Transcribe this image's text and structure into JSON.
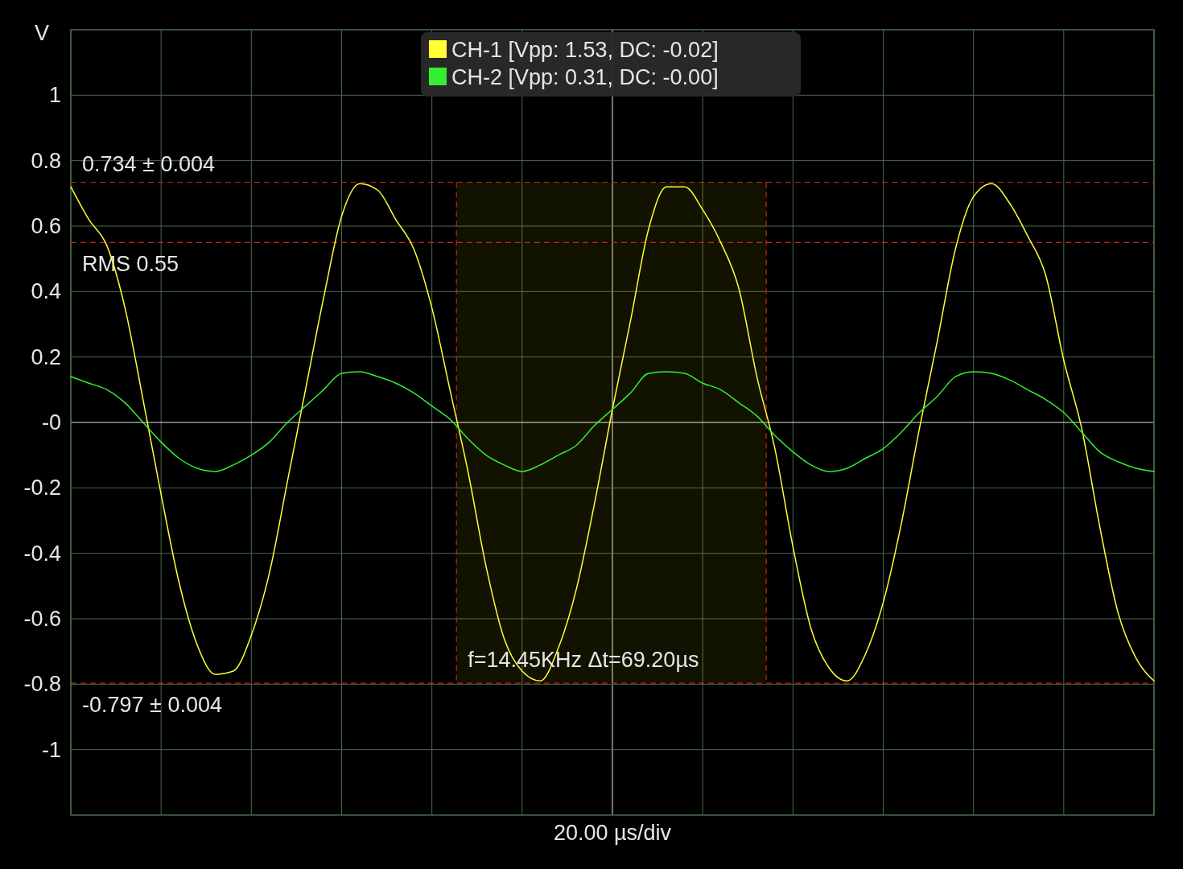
{
  "chart_data": {
    "type": "line",
    "ylabel": "V",
    "xlabel": "20.00 µs/div",
    "categories": [
      null,
      null,
      null,
      null,
      null,
      null,
      null,
      null,
      null,
      null,
      null,
      null,
      null,
      null,
      null,
      null,
      null,
      null,
      null,
      null,
      null,
      null,
      null,
      null,
      null,
      null,
      null,
      null,
      null,
      null,
      null,
      null,
      null,
      null,
      null,
      null,
      null,
      null,
      null,
      null,
      null,
      null,
      null,
      null,
      null,
      null,
      null,
      null,
      null,
      null,
      null,
      null,
      null,
      null,
      null,
      null,
      null,
      null,
      null,
      null,
      null
    ],
    "ylim": [
      -1.2,
      1.2
    ],
    "yticks": [
      1,
      0.8,
      0.6,
      0.4,
      0.2,
      {
        "value": 0,
        "label": "-0"
      },
      -0.2,
      -0.4,
      -0.6,
      -0.8,
      -1
    ],
    "grid": true,
    "legend": "top",
    "marker": "none",
    "line_style": "solid",
    "series": [
      {
        "name": "CH-1 [Vpp: 1.53, DC: -0.02]",
        "color": "#ffff33",
        "values": [
          0.72,
          0.62,
          0.54,
          0.35,
          0.07,
          -0.22,
          -0.49,
          -0.68,
          -0.77,
          -0.76,
          -0.65,
          -0.46,
          -0.18,
          0.1,
          0.38,
          0.63,
          0.73,
          0.71,
          0.62,
          0.53,
          0.35,
          0.1,
          -0.15,
          -0.44,
          -0.66,
          -0.76,
          -0.79,
          -0.69,
          -0.51,
          -0.25,
          0.04,
          0.31,
          0.59,
          0.72,
          0.72,
          0.65,
          0.55,
          0.41,
          0.14,
          -0.08,
          -0.38,
          -0.63,
          -0.75,
          -0.79,
          -0.71,
          -0.55,
          -0.31,
          -0.02,
          0.25,
          0.53,
          0.69,
          0.73,
          0.67,
          0.57,
          0.45,
          0.19,
          -0.02,
          -0.32,
          -0.58,
          -0.72,
          -0.79
        ]
      },
      {
        "name": "CH-2 [Vpp: 0.31, DC: -0.00]",
        "color": "#33ee33",
        "values": [
          0.14,
          0.12,
          0.1,
          0.06,
          0,
          -0.06,
          -0.11,
          -0.14,
          -0.15,
          -0.13,
          -0.1,
          -0.06,
          0,
          0.05,
          0.1,
          0.15,
          0.155,
          0.14,
          0.12,
          0.09,
          0.05,
          0.01,
          -0.05,
          -0.1,
          -0.13,
          -0.15,
          -0.13,
          -0.1,
          -0.07,
          -0.01,
          0.04,
          0.09,
          0.15,
          0.155,
          0.15,
          0.12,
          0.1,
          0.06,
          0.02,
          -0.04,
          -0.09,
          -0.13,
          -0.15,
          -0.14,
          -0.11,
          -0.08,
          -0.03,
          0.03,
          0.08,
          0.14,
          0.155,
          0.15,
          0.13,
          0.1,
          0.07,
          0.03,
          -0.03,
          -0.09,
          -0.12,
          -0.14,
          -0.15
        ]
      }
    ],
    "ref_lines": [
      {
        "axis": "y",
        "value": 0.734,
        "label": "0.734 ± 0.004",
        "color": "#cc2222",
        "line_style": "dashed"
      },
      {
        "axis": "y",
        "value": 0.55,
        "label": "RMS 0.55",
        "color": "#cc2222",
        "line_style": "dashed"
      },
      {
        "axis": "y",
        "value": -0.797,
        "label": "-0.797 ± 0.004",
        "color": "#cc2222",
        "line_style": "dashed"
      }
    ],
    "annotations": [
      "f=14.45KHz Δt=69.20µs"
    ]
  }
}
